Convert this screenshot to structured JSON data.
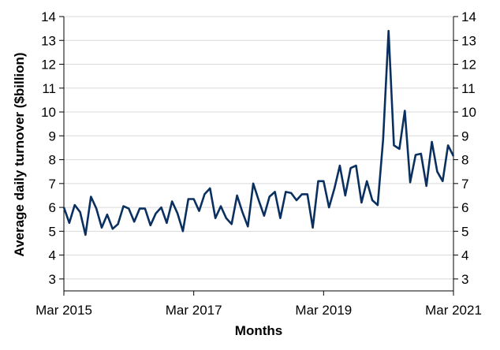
{
  "chart_data": {
    "type": "line",
    "title": "",
    "xlabel": "Months",
    "ylabel": "Average daily turnover ($billion)",
    "ylim": [
      2.5,
      14
    ],
    "y_ticks": [
      3,
      4,
      5,
      6,
      7,
      8,
      9,
      10,
      11,
      12,
      13,
      14
    ],
    "x_ticks": [
      {
        "label": "Mar 2015",
        "x": "2015-03"
      },
      {
        "label": "Mar 2017",
        "x": "2017-03"
      },
      {
        "label": "Mar 2019",
        "x": "2019-03"
      },
      {
        "label": "Mar 2021",
        "x": "2021-03"
      }
    ],
    "grid": true,
    "series_color": "#0a3060",
    "series": [
      {
        "x": [
          "2015-03",
          "2015-04",
          "2015-05",
          "2015-06",
          "2015-07",
          "2015-08",
          "2015-09",
          "2015-10",
          "2015-11",
          "2015-12",
          "2016-01",
          "2016-02",
          "2016-03",
          "2016-04",
          "2016-05",
          "2016-06",
          "2016-07",
          "2016-08",
          "2016-09",
          "2016-10",
          "2016-11",
          "2016-12",
          "2017-01",
          "2017-02",
          "2017-03",
          "2017-04",
          "2017-05",
          "2017-06",
          "2017-07",
          "2017-08",
          "2017-09",
          "2017-10",
          "2017-11",
          "2017-12",
          "2018-01",
          "2018-02",
          "2018-03",
          "2018-04",
          "2018-05",
          "2018-06",
          "2018-07",
          "2018-08",
          "2018-09",
          "2018-10",
          "2018-11",
          "2018-12",
          "2019-01",
          "2019-02",
          "2019-03",
          "2019-04",
          "2019-05",
          "2019-06",
          "2019-07",
          "2019-08",
          "2019-09",
          "2019-10",
          "2019-11",
          "2019-12",
          "2020-01",
          "2020-02",
          "2020-03",
          "2020-04",
          "2020-05",
          "2020-06",
          "2020-07",
          "2020-08",
          "2020-09",
          "2020-10",
          "2020-11",
          "2020-12",
          "2021-01",
          "2021-02",
          "2021-03"
        ],
        "values": [
          6.0,
          5.35,
          6.1,
          5.8,
          4.85,
          6.45,
          5.95,
          5.15,
          5.7,
          5.1,
          5.3,
          6.05,
          5.95,
          5.4,
          5.95,
          5.95,
          5.25,
          5.75,
          6.0,
          5.35,
          6.25,
          5.75,
          5.0,
          6.35,
          6.35,
          5.85,
          6.55,
          6.8,
          5.55,
          6.05,
          5.55,
          5.3,
          6.5,
          5.8,
          5.2,
          7.0,
          6.3,
          5.65,
          6.45,
          6.65,
          5.55,
          6.65,
          6.6,
          6.3,
          6.55,
          6.55,
          5.15,
          7.1,
          7.1,
          6.0,
          6.8,
          7.75,
          6.5,
          7.65,
          7.75,
          6.2,
          7.1,
          6.3,
          6.1,
          8.85,
          13.4,
          8.6,
          8.45,
          10.05,
          7.05,
          8.2,
          8.25,
          6.9,
          8.75,
          7.5,
          7.1,
          8.6,
          8.15
        ]
      }
    ]
  }
}
